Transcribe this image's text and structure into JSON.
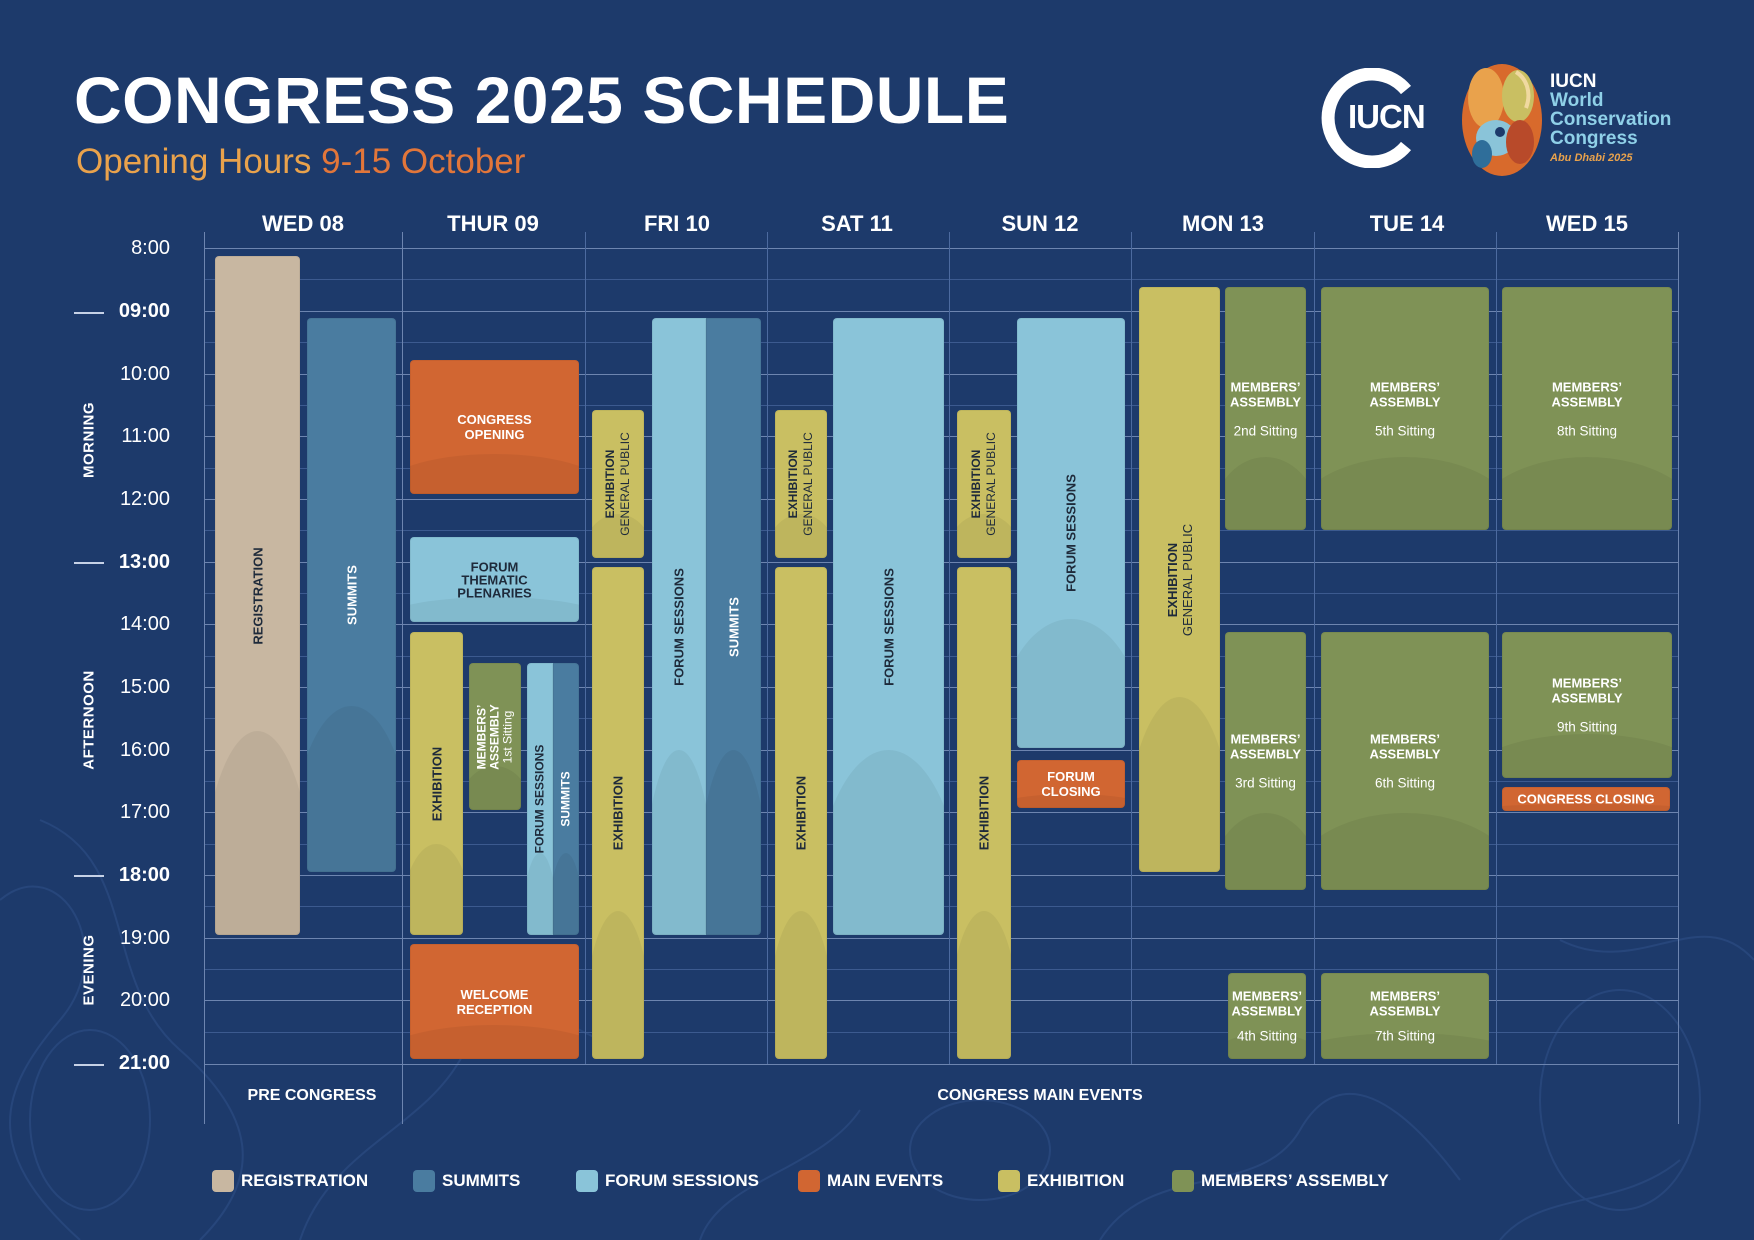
{
  "header": {
    "title": "CONGRESS 2025 SCHEDULE",
    "subtitle_a": "Opening Hours",
    "subtitle_b": "9-15 October"
  },
  "logos": {
    "iucn": "IUCN",
    "congress_line1": "IUCN",
    "congress_line2": "World",
    "congress_line3": "Conservation",
    "congress_line4": "Congress",
    "congress_line5": "Abu Dhabi 2025"
  },
  "days": [
    "WED 08",
    "THUR 09",
    "FRI 10",
    "SAT 11",
    "SUN 12",
    "MON 13",
    "TUE 14",
    "WED 15"
  ],
  "times": [
    "8:00",
    "09:00",
    "10:00",
    "11:00",
    "12:00",
    "13:00",
    "14:00",
    "15:00",
    "16:00",
    "17:00",
    "18:00",
    "19:00",
    "20:00",
    "21:00"
  ],
  "periods": {
    "morning": "MORNING",
    "afternoon": "AFTERNOON",
    "evening": "EVENING"
  },
  "sections": {
    "pre": "PRE CONGRESS",
    "main": "CONGRESS MAIN EVENTS"
  },
  "events": {
    "registration": "REGISTRATION",
    "summits": "SUMMITS",
    "congress_opening": "CONGRESS OPENING",
    "forum_thematic_plenaries": "FORUM THEMATIC PLENARIES",
    "exhibition": "EXHIBITION",
    "general_public": "GENERAL PUBLIC",
    "members_assembly": "MEMBERS’ ASSEMBLY",
    "forum_sessions": "FORUM SESSIONS",
    "welcome_reception": "WELCOME RECEPTION",
    "forum_closing": "FORUM CLOSING",
    "congress_closing": "CONGRESS CLOSING",
    "sitting_1": "1st Sitting",
    "sitting_2": "2nd Sitting",
    "sitting_3": "3rd Sitting",
    "sitting_4": "4th Sitting",
    "sitting_5": "5th Sitting",
    "sitting_6": "6th Sitting",
    "sitting_7": "7th Sitting",
    "sitting_8": "8th Sitting",
    "sitting_9": "9th Sitting"
  },
  "legend": [
    {
      "label": "REGISTRATION",
      "color": "#c8b7a1"
    },
    {
      "label": "SUMMITS",
      "color": "#4a7ca0"
    },
    {
      "label": "FORUM SESSIONS",
      "color": "#8ac4d9"
    },
    {
      "label": "MAIN EVENTS",
      "color": "#d16632"
    },
    {
      "label": "EXHIBITION",
      "color": "#c9bf62"
    },
    {
      "label": "MEMBERS’ ASSEMBLY",
      "color": "#7f9256"
    }
  ],
  "colors": {
    "background": "#1d3a6b",
    "registration": "#c8b7a1",
    "summits": "#4a7ca0",
    "forum_sessions": "#8ac4d9",
    "main_events": "#d16632",
    "exhibition": "#c9bf62",
    "members_assembly": "#7f9256",
    "subtitle_a": "#e9a24c",
    "subtitle_b": "#e2763a"
  }
}
